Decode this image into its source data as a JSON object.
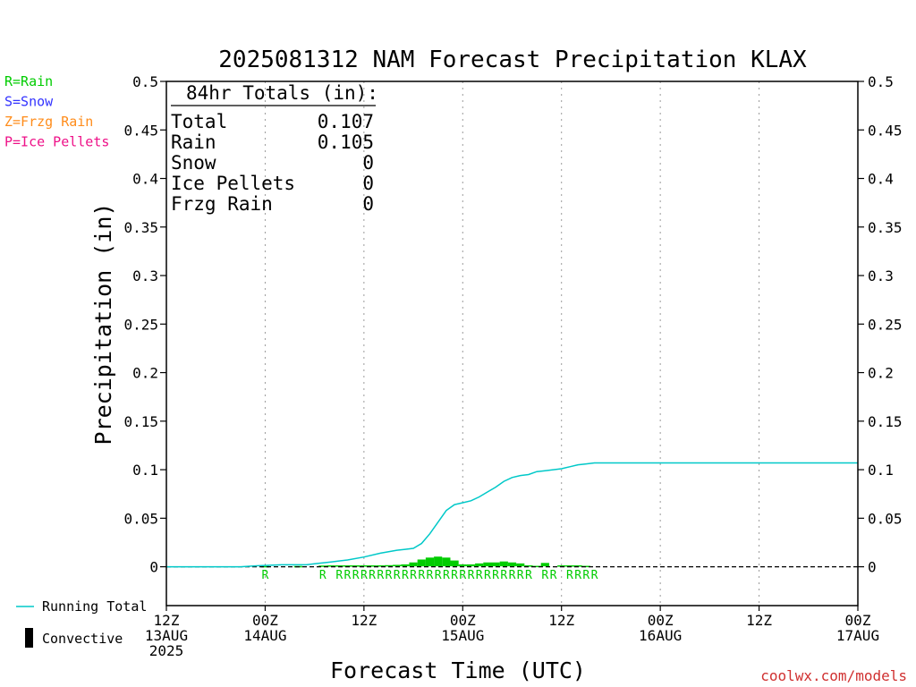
{
  "chart_data": {
    "type": "line",
    "title": "2025081312 NAM Forecast Precipitation KLAX",
    "xlabel": "Forecast Time (UTC)",
    "ylabel": "Precipitation (in)",
    "ylim": [
      -0.04,
      0.5
    ],
    "xlim_hours": [
      0,
      84
    ],
    "y_ticks": [
      "0",
      "0.05",
      "0.1",
      "0.15",
      "0.2",
      "0.25",
      "0.3",
      "0.35",
      "0.4",
      "0.45",
      "0.5"
    ],
    "x_ticks": [
      {
        "hour": 0,
        "lines": [
          "12Z",
          "13AUG",
          "2025"
        ]
      },
      {
        "hour": 12,
        "lines": [
          "00Z",
          "14AUG"
        ]
      },
      {
        "hour": 24,
        "lines": [
          "12Z"
        ]
      },
      {
        "hour": 36,
        "lines": [
          "00Z",
          "15AUG"
        ]
      },
      {
        "hour": 48,
        "lines": [
          "12Z"
        ]
      },
      {
        "hour": 60,
        "lines": [
          "00Z",
          "16AUG"
        ]
      },
      {
        "hour": 72,
        "lines": [
          "12Z"
        ]
      },
      {
        "hour": 84,
        "lines": [
          "00Z",
          "17AUG"
        ]
      }
    ],
    "grid": "vertical dotted",
    "totals": {
      "heading": "84hr Totals (in):",
      "rows": [
        {
          "label": "Total",
          "value": "0.107"
        },
        {
          "label": "Rain",
          "value": "0.105"
        },
        {
          "label": "Snow",
          "value": "0"
        },
        {
          "label": "Ice Pellets",
          "value": "0"
        },
        {
          "label": "Frzg Rain",
          "value": "0"
        }
      ]
    },
    "ptype_legend": [
      {
        "text": "R=Rain",
        "color": "#00cc00"
      },
      {
        "text": "S=Snow",
        "color": "#3333ff"
      },
      {
        "text": "Z=Frzg Rain",
        "color": "#ff8c1a"
      },
      {
        "text": "P=Ice Pellets",
        "color": "#ee1188"
      }
    ],
    "series": [
      {
        "name": "Running Total",
        "color": "#00c8c8",
        "x": [
          0,
          9,
          11,
          14,
          17,
          18,
          20,
          22,
          24,
          26,
          28,
          29,
          30,
          31,
          32,
          33,
          34,
          35,
          36,
          37,
          38,
          39,
          40,
          41,
          42,
          43,
          44,
          45,
          46,
          47,
          48,
          49,
          50,
          51,
          52,
          53,
          54,
          60,
          72,
          84
        ],
        "y": [
          0,
          0,
          0.001,
          0.002,
          0.002,
          0.003,
          0.005,
          0.007,
          0.01,
          0.014,
          0.017,
          0.018,
          0.019,
          0.024,
          0.034,
          0.046,
          0.058,
          0.064,
          0.066,
          0.068,
          0.072,
          0.077,
          0.082,
          0.088,
          0.092,
          0.094,
          0.095,
          0.098,
          0.099,
          0.1,
          0.101,
          0.103,
          0.105,
          0.106,
          0.107,
          0.107,
          0.107,
          0.107,
          0.107,
          0.107
        ]
      },
      {
        "name": "Rain",
        "color": "#00cc00",
        "type": "bar",
        "x": [
          12,
          16,
          19,
          20,
          21,
          22,
          23,
          24,
          25,
          26,
          27,
          28,
          29,
          30,
          31,
          32,
          33,
          34,
          35,
          36,
          37,
          38,
          39,
          40,
          41,
          42,
          43,
          44,
          45,
          46,
          48,
          49,
          50,
          51
        ],
        "y": [
          0.0003,
          0.0003,
          0.0008,
          0.001,
          0.001,
          0.001,
          0.001,
          0.001,
          0.001,
          0.001,
          0.0012,
          0.0015,
          0.002,
          0.004,
          0.007,
          0.009,
          0.01,
          0.009,
          0.006,
          0.002,
          0.002,
          0.003,
          0.004,
          0.004,
          0.005,
          0.004,
          0.003,
          0.001,
          0.0005,
          0.0035,
          0.001,
          0.001,
          0.001,
          0.0005
        ]
      }
    ],
    "ptype_marks": [
      {
        "hour": 12,
        "text": "R"
      },
      {
        "hour": 19,
        "text": "R"
      },
      {
        "hour": 21,
        "text": "R"
      },
      {
        "hour": 22,
        "text": "R"
      },
      {
        "hour": 23,
        "text": "R"
      },
      {
        "hour": 24,
        "text": "R"
      },
      {
        "hour": 25,
        "text": "R"
      },
      {
        "hour": 26,
        "text": "R"
      },
      {
        "hour": 27,
        "text": "R"
      },
      {
        "hour": 28,
        "text": "R"
      },
      {
        "hour": 29,
        "text": "R"
      },
      {
        "hour": 30,
        "text": "R"
      },
      {
        "hour": 31,
        "text": "R"
      },
      {
        "hour": 32,
        "text": "R"
      },
      {
        "hour": 33,
        "text": "R"
      },
      {
        "hour": 34,
        "text": "R"
      },
      {
        "hour": 35,
        "text": "R"
      },
      {
        "hour": 36,
        "text": "R"
      },
      {
        "hour": 37,
        "text": "R"
      },
      {
        "hour": 38,
        "text": "R"
      },
      {
        "hour": 39,
        "text": "R"
      },
      {
        "hour": 40,
        "text": "R"
      },
      {
        "hour": 41,
        "text": "R"
      },
      {
        "hour": 42,
        "text": "R"
      },
      {
        "hour": 43,
        "text": "R"
      },
      {
        "hour": 44,
        "text": "R"
      },
      {
        "hour": 46,
        "text": "R"
      },
      {
        "hour": 47,
        "text": "R"
      },
      {
        "hour": 49,
        "text": "R"
      },
      {
        "hour": 50,
        "text": "R"
      },
      {
        "hour": 51,
        "text": "R"
      },
      {
        "hour": 52,
        "text": "R"
      }
    ],
    "line_legend": [
      {
        "label": "Running Total",
        "color": "#00c8c8",
        "kind": "line"
      },
      {
        "label": "Convective",
        "color": "#000000",
        "kind": "bar"
      }
    ],
    "credit": "coolwx.com/models"
  }
}
